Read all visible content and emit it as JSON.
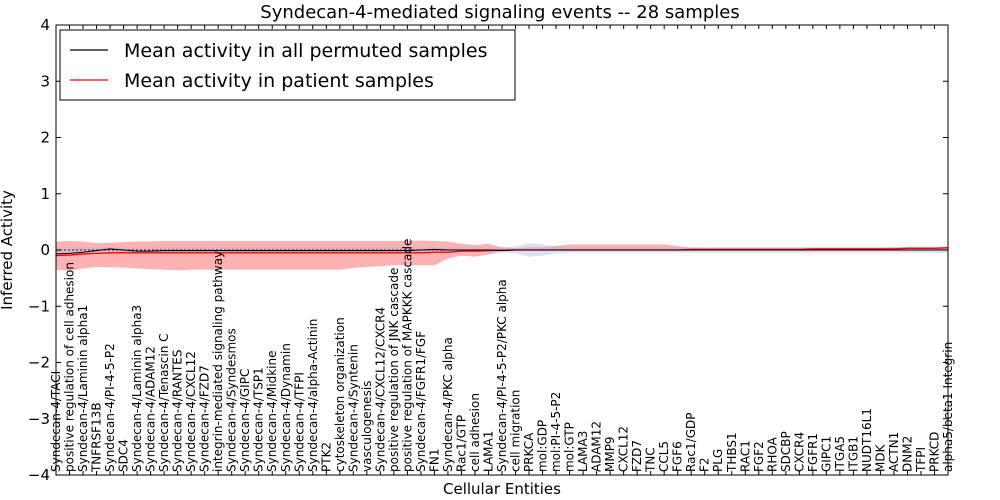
{
  "chart_data": {
    "type": "line",
    "title": "Syndecan-4-mediated signaling events -- 28 samples",
    "xlabel": "Cellular Entities",
    "ylabel": "Inferred Activity",
    "ylim": [
      -4,
      4
    ],
    "yticks": [
      -4,
      -3,
      -2,
      -1,
      0,
      1,
      2,
      3,
      4
    ],
    "ytick_labels": [
      "−4",
      "−3",
      "−2",
      "−1",
      "0",
      "1",
      "2",
      "3",
      "4"
    ],
    "grid": false,
    "legend_position": "top-left",
    "categories": [
      "Syndecan-4/TACI",
      "positive regulation of cell adhesion",
      "Syndecan-4/Laminin alpha1",
      "TNFRSF13B",
      "Syndecan-4/PI-4-5-P2",
      "SDC4",
      "Syndecan-4/Laminin alpha3",
      "Syndecan-4/ADAM12",
      "Syndecan-4/Tenascin C",
      "Syndecan-4/RANTES",
      "Syndecan-4/CXCL12",
      "Syndecan-4/FZD7",
      "integrin-mediated signaling pathway",
      "Syndecan-4/Syndesmos",
      "Syndecan-4/GIPC",
      "Syndecan-4/TSP1",
      "Syndecan-4/Midkine",
      "Syndecan-4/Dynamin",
      "Syndecan-4/TFPI",
      "Syndecan-4/alpha-Actinin",
      "PTK2",
      "cytoskeleton organization",
      "Syndecan-4/Syntenin",
      "vasculogenesis",
      "Syndecan-4/CXCL12/CXCR4",
      "positive regulation of JNK cascade",
      "positive regulation of MAPKKK cascade",
      "Syndecan-4/FGFR1/FGF",
      "FN1",
      "Syndecan-4/PKC alpha",
      "Rac1/GTP",
      "cell adhesion",
      "LAMA1",
      "Syndecan-4/PI-4-5-P2/PKC alpha",
      "cell migration",
      "PRKCA",
      "mol:GDP",
      "mol:PI-4-5-P2",
      "mol:GTP",
      "LAMA3",
      "ADAM12",
      "MMP9",
      "CXCL12",
      "FZD7",
      "TNC",
      "CCL5",
      "FGF6",
      "Rac1/GDP",
      "F2",
      "PLG",
      "THBS1",
      "RAC1",
      "FGF2",
      "RHOA",
      "SDCBP",
      "CXCR4",
      "FGFR1",
      "GIPC1",
      "ITGA5",
      "ITGB1",
      "NUDT16L1",
      "MDK",
      "ACTN1",
      "DNM2",
      "TFPI",
      "PRKCD",
      "alpha5/beta1 Integrin"
    ],
    "series": [
      {
        "name": "Mean activity in all permuted samples",
        "color": "#000000",
        "values": [
          -0.07,
          -0.06,
          -0.04,
          -0.01,
          0.02,
          0.0,
          -0.02,
          -0.02,
          -0.01,
          -0.01,
          -0.01,
          -0.01,
          -0.01,
          -0.01,
          -0.01,
          -0.01,
          -0.01,
          -0.01,
          -0.01,
          -0.01,
          -0.01,
          -0.01,
          -0.01,
          -0.01,
          -0.01,
          -0.01,
          -0.01,
          0.0,
          0.01,
          0.0,
          0.0,
          0.0,
          0.0,
          -0.01,
          0.0,
          0.0,
          0.0,
          0.0,
          0.0,
          0.0,
          0.0,
          0.0,
          0.0,
          0.0,
          0.0,
          0.0,
          0.0,
          0.0,
          0.0,
          0.0,
          0.0,
          0.0,
          0.0,
          0.0,
          0.0,
          0.0,
          0.0,
          0.0,
          0.0,
          0.0,
          0.0,
          0.0,
          0.0,
          0.0,
          0.0,
          0.0,
          0.0
        ],
        "band_lower": [
          -0.04,
          -0.05,
          -0.05,
          -0.05,
          -0.05,
          -0.05,
          -0.05,
          -0.05,
          -0.05,
          -0.05,
          -0.05,
          -0.05,
          -0.05,
          -0.05,
          -0.05,
          -0.05,
          -0.05,
          -0.05,
          -0.05,
          -0.05,
          -0.05,
          -0.05,
          -0.05,
          -0.05,
          -0.05,
          -0.05,
          -0.05,
          -0.05,
          -0.05,
          -0.05,
          -0.05,
          -0.05,
          -0.05,
          -0.05,
          -0.06,
          -0.12,
          -0.1,
          -0.06,
          -0.05,
          -0.05,
          -0.05,
          -0.05,
          -0.05,
          -0.05,
          -0.05,
          -0.05,
          -0.05,
          -0.05,
          -0.05,
          -0.05,
          -0.05,
          -0.05,
          -0.05,
          -0.05,
          -0.05,
          -0.05,
          -0.05,
          -0.05,
          -0.05,
          -0.05,
          -0.05,
          -0.05,
          -0.05,
          -0.05,
          -0.05,
          -0.05,
          -0.05
        ],
        "band_upper": [
          0.04,
          0.05,
          0.05,
          0.05,
          0.05,
          0.05,
          0.05,
          0.05,
          0.05,
          0.05,
          0.05,
          0.05,
          0.05,
          0.05,
          0.05,
          0.05,
          0.05,
          0.05,
          0.05,
          0.05,
          0.05,
          0.05,
          0.05,
          0.05,
          0.05,
          0.05,
          0.05,
          0.05,
          0.05,
          0.05,
          0.05,
          0.05,
          0.05,
          0.05,
          0.06,
          0.12,
          0.1,
          0.06,
          0.05,
          0.05,
          0.05,
          0.05,
          0.05,
          0.05,
          0.05,
          0.05,
          0.05,
          0.05,
          0.05,
          0.05,
          0.05,
          0.05,
          0.05,
          0.05,
          0.05,
          0.05,
          0.05,
          0.05,
          0.05,
          0.05,
          0.05,
          0.05,
          0.05,
          0.05,
          0.05,
          0.05,
          0.05
        ]
      },
      {
        "name": "Mean activity in patient samples",
        "color": "#ff0000",
        "values": [
          -0.1,
          -0.09,
          -0.07,
          -0.06,
          -0.05,
          -0.05,
          -0.05,
          -0.05,
          -0.05,
          -0.05,
          -0.05,
          -0.05,
          -0.05,
          -0.05,
          -0.05,
          -0.05,
          -0.05,
          -0.05,
          -0.05,
          -0.05,
          -0.05,
          -0.05,
          -0.05,
          -0.05,
          -0.05,
          -0.05,
          -0.05,
          -0.05,
          -0.04,
          -0.04,
          -0.02,
          -0.02,
          -0.01,
          0.0,
          0.0,
          0.0,
          0.0,
          0.0,
          0.0,
          0.0,
          0.0,
          0.0,
          0.0,
          0.0,
          0.0,
          0.0,
          0.0,
          0.01,
          0.01,
          0.01,
          0.01,
          0.01,
          0.01,
          0.01,
          0.01,
          0.01,
          0.02,
          0.02,
          0.02,
          0.02,
          0.02,
          0.02,
          0.02,
          0.03,
          0.03,
          0.03,
          0.04
        ],
        "band_lower": [
          -0.35,
          -0.37,
          -0.33,
          -0.3,
          -0.31,
          -0.31,
          -0.33,
          -0.34,
          -0.35,
          -0.36,
          -0.35,
          -0.35,
          -0.35,
          -0.35,
          -0.35,
          -0.35,
          -0.35,
          -0.35,
          -0.35,
          -0.35,
          -0.35,
          -0.35,
          -0.32,
          -0.3,
          -0.29,
          -0.27,
          -0.27,
          -0.27,
          -0.27,
          -0.15,
          -0.1,
          -0.12,
          -0.08,
          -0.02,
          -0.01,
          -0.01,
          -0.01,
          -0.01,
          -0.01,
          -0.01,
          -0.01,
          -0.01,
          -0.01,
          -0.01,
          -0.01,
          -0.01,
          -0.01,
          -0.01,
          -0.01,
          -0.01,
          -0.01,
          -0.01,
          -0.01,
          -0.01,
          -0.01,
          -0.01,
          -0.01,
          -0.01,
          -0.01,
          -0.01,
          -0.01,
          -0.01,
          -0.01,
          -0.01,
          -0.01,
          -0.01,
          -0.01
        ],
        "band_upper": [
          0.15,
          0.16,
          0.15,
          0.12,
          0.13,
          0.14,
          0.15,
          0.15,
          0.16,
          0.16,
          0.16,
          0.16,
          0.16,
          0.16,
          0.16,
          0.16,
          0.16,
          0.16,
          0.16,
          0.16,
          0.16,
          0.16,
          0.16,
          0.16,
          0.16,
          0.16,
          0.16,
          0.17,
          0.16,
          0.15,
          0.11,
          0.09,
          0.11,
          0.05,
          0.03,
          0.05,
          0.05,
          0.07,
          0.1,
          0.1,
          0.1,
          0.1,
          0.1,
          0.1,
          0.1,
          0.1,
          0.07,
          0.04,
          0.04,
          0.04,
          0.04,
          0.04,
          0.04,
          0.04,
          0.04,
          0.04,
          0.04,
          0.04,
          0.04,
          0.04,
          0.04,
          0.04,
          0.05,
          0.05,
          0.05,
          0.05,
          0.06
        ]
      }
    ],
    "legend": [
      "Mean activity in all permuted samples",
      "Mean activity in patient samples"
    ]
  }
}
